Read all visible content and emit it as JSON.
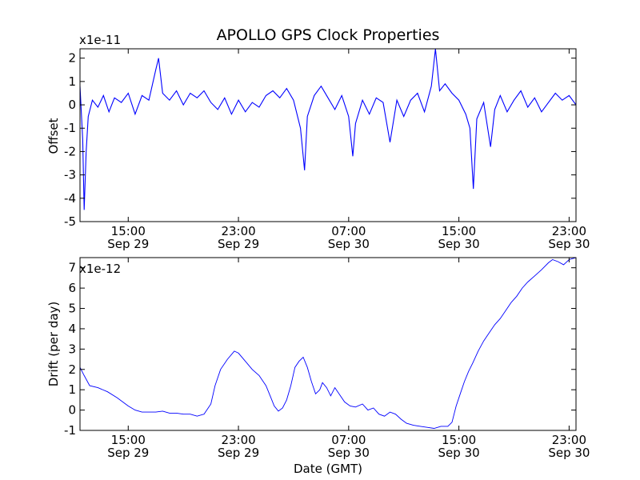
{
  "chart_data": [
    {
      "type": "line",
      "title": "APOLLO GPS Clock Properties",
      "xlabel": "",
      "ylabel": "Offset",
      "scale_label": "x1e-11",
      "ylim": [
        -5,
        2.4
      ],
      "yticks": [
        "2",
        "1",
        "0",
        "-1",
        "-2",
        "-3",
        "-4",
        "-5"
      ],
      "ytick_values": [
        2,
        1,
        0,
        -1,
        -2,
        -3,
        -4,
        -5
      ],
      "xlim_hours": [
        11.5,
        47.5
      ],
      "xtick_hours": [
        15,
        23,
        31,
        39,
        47
      ],
      "xticks": [
        {
          "time": "15:00",
          "date": "Sep 29"
        },
        {
          "time": "23:00",
          "date": "Sep 29"
        },
        {
          "time": "07:00",
          "date": "Sep 30"
        },
        {
          "time": "15:00",
          "date": "Sep 30"
        },
        {
          "time": "23:00",
          "date": "Sep 30"
        }
      ],
      "color": "#0000ff",
      "series": [
        {
          "values": [
            [
              11.5,
              0.8
            ],
            [
              11.7,
              -1.5
            ],
            [
              11.8,
              -4.5
            ],
            [
              11.95,
              -2.0
            ],
            [
              12.1,
              -0.5
            ],
            [
              12.4,
              0.2
            ],
            [
              12.8,
              -0.1
            ],
            [
              13.2,
              0.4
            ],
            [
              13.6,
              -0.3
            ],
            [
              14.0,
              0.3
            ],
            [
              14.5,
              0.1
            ],
            [
              15.0,
              0.5
            ],
            [
              15.5,
              -0.4
            ],
            [
              16.0,
              0.4
            ],
            [
              16.5,
              0.2
            ],
            [
              17.0,
              1.5
            ],
            [
              17.2,
              2.0
            ],
            [
              17.5,
              0.5
            ],
            [
              18.0,
              0.2
            ],
            [
              18.5,
              0.6
            ],
            [
              19.0,
              0.0
            ],
            [
              19.5,
              0.5
            ],
            [
              20.0,
              0.3
            ],
            [
              20.5,
              0.6
            ],
            [
              21.0,
              0.1
            ],
            [
              21.5,
              -0.2
            ],
            [
              22.0,
              0.3
            ],
            [
              22.5,
              -0.4
            ],
            [
              23.0,
              0.2
            ],
            [
              23.5,
              -0.3
            ],
            [
              24.0,
              0.1
            ],
            [
              24.5,
              -0.1
            ],
            [
              25.0,
              0.4
            ],
            [
              25.5,
              0.6
            ],
            [
              26.0,
              0.3
            ],
            [
              26.5,
              0.7
            ],
            [
              27.0,
              0.2
            ],
            [
              27.5,
              -1.0
            ],
            [
              27.8,
              -2.8
            ],
            [
              28.0,
              -0.5
            ],
            [
              28.5,
              0.4
            ],
            [
              29.0,
              0.8
            ],
            [
              29.5,
              0.3
            ],
            [
              30.0,
              -0.2
            ],
            [
              30.5,
              0.4
            ],
            [
              31.0,
              -0.5
            ],
            [
              31.3,
              -2.2
            ],
            [
              31.5,
              -0.8
            ],
            [
              32.0,
              0.2
            ],
            [
              32.5,
              -0.4
            ],
            [
              33.0,
              0.3
            ],
            [
              33.5,
              0.1
            ],
            [
              34.0,
              -1.6
            ],
            [
              34.5,
              0.2
            ],
            [
              35.0,
              -0.5
            ],
            [
              35.5,
              0.2
            ],
            [
              36.0,
              0.5
            ],
            [
              36.5,
              -0.3
            ],
            [
              37.0,
              0.8
            ],
            [
              37.3,
              2.4
            ],
            [
              37.6,
              0.6
            ],
            [
              38.0,
              0.9
            ],
            [
              38.5,
              0.5
            ],
            [
              39.0,
              0.2
            ],
            [
              39.5,
              -0.4
            ],
            [
              39.8,
              -1.0
            ],
            [
              40.05,
              -3.6
            ],
            [
              40.3,
              -0.6
            ],
            [
              40.8,
              0.1
            ],
            [
              41.3,
              -1.8
            ],
            [
              41.6,
              -0.2
            ],
            [
              42.0,
              0.4
            ],
            [
              42.5,
              -0.3
            ],
            [
              43.0,
              0.2
            ],
            [
              43.5,
              0.6
            ],
            [
              44.0,
              -0.1
            ],
            [
              44.5,
              0.3
            ],
            [
              45.0,
              -0.3
            ],
            [
              45.5,
              0.1
            ],
            [
              46.0,
              0.5
            ],
            [
              46.5,
              0.2
            ],
            [
              47.0,
              0.4
            ],
            [
              47.5,
              0.0
            ]
          ]
        }
      ]
    },
    {
      "type": "line",
      "title": "",
      "xlabel": "Date (GMT)",
      "ylabel": "Drift (per day)",
      "scale_label": "x1e-12",
      "ylim": [
        -1,
        7.5
      ],
      "yticks": [
        "7",
        "6",
        "5",
        "4",
        "3",
        "2",
        "1",
        "0",
        "-1"
      ],
      "ytick_values": [
        7,
        6,
        5,
        4,
        3,
        2,
        1,
        0,
        -1
      ],
      "xlim_hours": [
        11.5,
        47.5
      ],
      "xtick_hours": [
        15,
        23,
        31,
        39,
        47
      ],
      "xticks": [
        {
          "time": "15:00",
          "date": "Sep 29"
        },
        {
          "time": "23:00",
          "date": "Sep 29"
        },
        {
          "time": "07:00",
          "date": "Sep 30"
        },
        {
          "time": "15:00",
          "date": "Sep 30"
        },
        {
          "time": "23:00",
          "date": "Sep 30"
        }
      ],
      "color": "#0000ff",
      "series": [
        {
          "values": [
            [
              11.5,
              2.1
            ],
            [
              11.8,
              1.7
            ],
            [
              12.2,
              1.2
            ],
            [
              12.8,
              1.1
            ],
            [
              13.5,
              0.9
            ],
            [
              14.2,
              0.6
            ],
            [
              15.0,
              0.2
            ],
            [
              15.5,
              0.0
            ],
            [
              16.0,
              -0.1
            ],
            [
              16.5,
              -0.1
            ],
            [
              17.0,
              -0.1
            ],
            [
              17.5,
              -0.05
            ],
            [
              18.0,
              -0.15
            ],
            [
              18.5,
              -0.15
            ],
            [
              19.0,
              -0.2
            ],
            [
              19.5,
              -0.2
            ],
            [
              20.0,
              -0.3
            ],
            [
              20.5,
              -0.2
            ],
            [
              21.0,
              0.3
            ],
            [
              21.3,
              1.2
            ],
            [
              21.7,
              2.0
            ],
            [
              22.2,
              2.5
            ],
            [
              22.7,
              2.9
            ],
            [
              23.0,
              2.8
            ],
            [
              23.5,
              2.4
            ],
            [
              24.0,
              2.0
            ],
            [
              24.5,
              1.7
            ],
            [
              25.0,
              1.2
            ],
            [
              25.3,
              0.7
            ],
            [
              25.6,
              0.2
            ],
            [
              25.9,
              -0.05
            ],
            [
              26.2,
              0.1
            ],
            [
              26.5,
              0.5
            ],
            [
              26.8,
              1.2
            ],
            [
              27.1,
              2.1
            ],
            [
              27.4,
              2.4
            ],
            [
              27.7,
              2.6
            ],
            [
              28.0,
              2.1
            ],
            [
              28.3,
              1.4
            ],
            [
              28.6,
              0.8
            ],
            [
              28.9,
              1.0
            ],
            [
              29.1,
              1.35
            ],
            [
              29.4,
              1.1
            ],
            [
              29.7,
              0.7
            ],
            [
              30.0,
              1.1
            ],
            [
              30.3,
              0.8
            ],
            [
              30.7,
              0.4
            ],
            [
              31.1,
              0.2
            ],
            [
              31.5,
              0.15
            ],
            [
              32.0,
              0.3
            ],
            [
              32.4,
              0.0
            ],
            [
              32.8,
              0.1
            ],
            [
              33.2,
              -0.2
            ],
            [
              33.6,
              -0.3
            ],
            [
              34.0,
              -0.1
            ],
            [
              34.4,
              -0.2
            ],
            [
              34.8,
              -0.45
            ],
            [
              35.2,
              -0.65
            ],
            [
              35.7,
              -0.75
            ],
            [
              36.2,
              -0.8
            ],
            [
              36.7,
              -0.85
            ],
            [
              37.2,
              -0.9
            ],
            [
              37.7,
              -0.8
            ],
            [
              38.2,
              -0.8
            ],
            [
              38.5,
              -0.6
            ],
            [
              38.8,
              0.2
            ],
            [
              39.1,
              0.8
            ],
            [
              39.4,
              1.4
            ],
            [
              39.7,
              1.9
            ],
            [
              40.0,
              2.3
            ],
            [
              40.4,
              2.9
            ],
            [
              40.8,
              3.4
            ],
            [
              41.2,
              3.8
            ],
            [
              41.6,
              4.2
            ],
            [
              42.0,
              4.5
            ],
            [
              42.4,
              4.9
            ],
            [
              42.8,
              5.3
            ],
            [
              43.2,
              5.6
            ],
            [
              43.6,
              6.0
            ],
            [
              44.0,
              6.3
            ],
            [
              44.5,
              6.6
            ],
            [
              45.0,
              6.9
            ],
            [
              45.5,
              7.25
            ],
            [
              45.8,
              7.4
            ],
            [
              46.2,
              7.3
            ],
            [
              46.6,
              7.15
            ],
            [
              47.0,
              7.4
            ],
            [
              47.5,
              7.5
            ]
          ]
        }
      ]
    }
  ]
}
